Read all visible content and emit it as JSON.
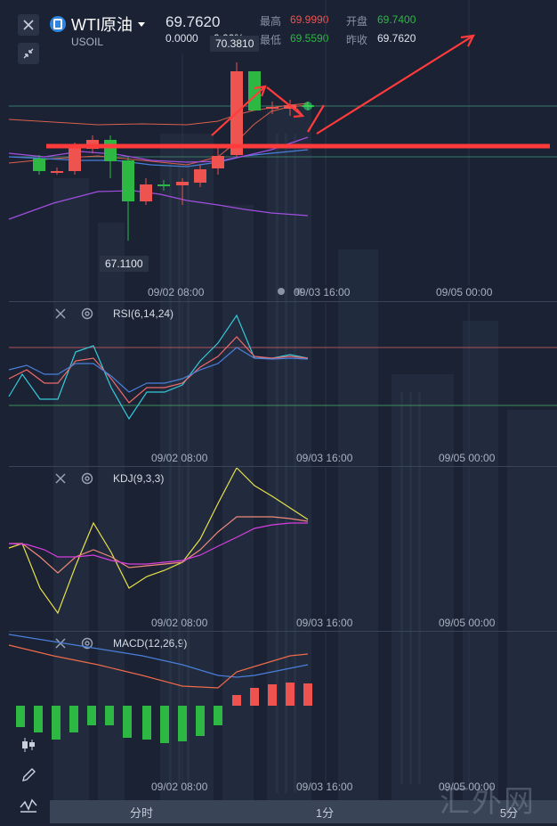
{
  "header": {
    "symbol": "WTI原油",
    "subtitle": "USOIL",
    "price": "69.7620",
    "change": "0.0000",
    "change_pct": "0.00%",
    "high_label": "最高",
    "high_value": "69.9990",
    "open_label": "开盘",
    "open_value": "69.7400",
    "low_label": "最低",
    "low_value": "69.5590",
    "prev_close_label": "昨收",
    "prev_close_value": "69.7620"
  },
  "colors": {
    "up": "#ef5350",
    "down": "#2db843",
    "ma_blue": "#4a7fd9",
    "ma_purple": "#a24fe0",
    "boll": "#d9604c",
    "annotation": "#ff3b3b"
  },
  "main_chart": {
    "high_marker": "70.3810",
    "low_marker": "67.1100",
    "time_labels": [
      "09/02 08:00",
      "09/03 16:00",
      "09/05 00:00"
    ]
  },
  "panels": {
    "rsi": {
      "title": "RSI(6,14,24)",
      "time_labels": [
        "09/02 08:00",
        "09/03 16:00",
        "09/05 00:00"
      ]
    },
    "kdj": {
      "title": "KDJ(9,3,3)",
      "time_labels": [
        "09/02 08:00",
        "09/03 16:00",
        "09/05 00:00"
      ]
    },
    "macd": {
      "title": "MACD(12,26,9)",
      "time_labels": [
        "09/02 08:00",
        "09/03 16:00",
        "09/05 00:00"
      ]
    }
  },
  "bottom_tabs": [
    "分时",
    "1分",
    "5分"
  ],
  "watermark": "汇外网",
  "icons": [
    "close-icon",
    "collapse-icon",
    "gear-icon",
    "candle-icon",
    "pencil-icon",
    "indicator-icon",
    "dropdown-icon"
  ]
}
